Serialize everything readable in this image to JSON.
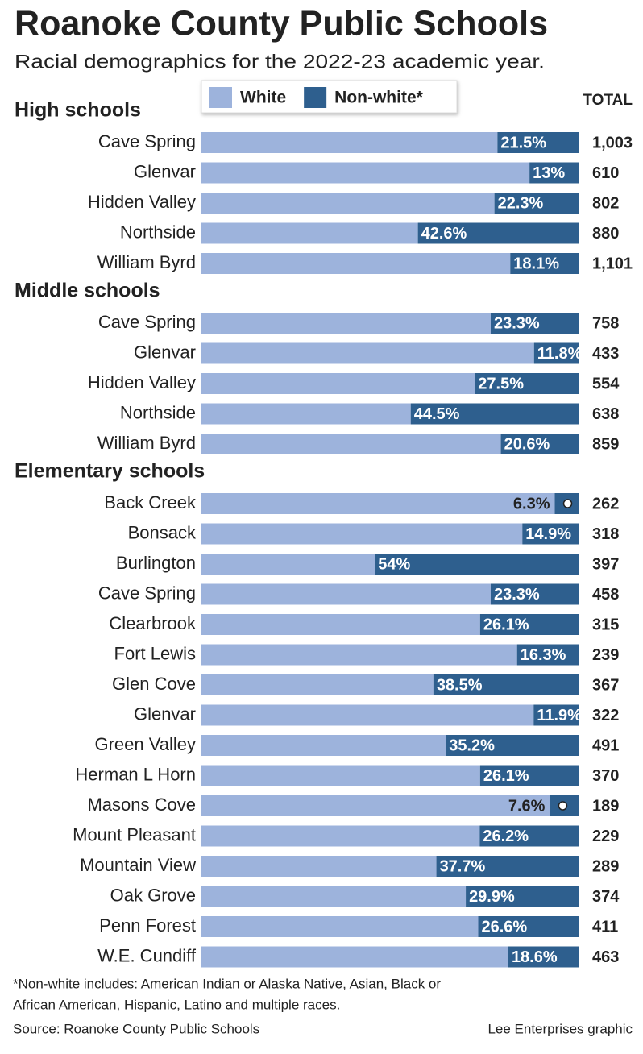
{
  "chart_data": {
    "type": "stacked-bar",
    "title": "Roanoke County Public Schools",
    "subtitle": "Racial demographics for the 2022-23 academic year.",
    "series": [
      {
        "name": "White",
        "color": "#9db3dc"
      },
      {
        "name": "Non-white*",
        "color": "#2e5f8e"
      }
    ],
    "total_header": "TOTAL",
    "xlim": [
      0,
      100
    ],
    "groups": [
      {
        "name": "High schools",
        "categories": [
          "Cave Spring",
          "Glenvar",
          "Hidden Valley",
          "Northside",
          "William Byrd"
        ],
        "values": [
          [
            78.5,
            87,
            77.7,
            57.4,
            81.9
          ],
          [
            21.5,
            13,
            22.3,
            42.6,
            18.1
          ]
        ],
        "value_labels": [
          "21.5%",
          "13%",
          "22.3%",
          "42.6%",
          "18.1%"
        ],
        "totals": [
          1003,
          610,
          802,
          880,
          1101
        ],
        "total_labels": [
          "1,003",
          "610",
          "802",
          "880",
          "1,101"
        ]
      },
      {
        "name": "Middle schools",
        "categories": [
          "Cave Spring",
          "Glenvar",
          "Hidden Valley",
          "Northside",
          "William Byrd"
        ],
        "values": [
          [
            76.7,
            88.2,
            72.5,
            55.5,
            79.4
          ],
          [
            23.3,
            11.8,
            27.5,
            44.5,
            20.6
          ]
        ],
        "value_labels": [
          "23.3%",
          "11.8%",
          "27.5%",
          "44.5%",
          "20.6%"
        ],
        "totals": [
          758,
          433,
          554,
          638,
          859
        ],
        "total_labels": [
          "758",
          "433",
          "554",
          "638",
          "859"
        ]
      },
      {
        "name": "Elementary schools",
        "categories": [
          "Back Creek",
          "Bonsack",
          "Burlington",
          "Cave Spring",
          "Clearbrook",
          "Fort Lewis",
          "Glen Cove",
          "Glenvar",
          "Green Valley",
          "Herman L Horn",
          "Masons Cove",
          "Mount Pleasant",
          "Mountain View",
          "Oak Grove",
          "Penn Forest",
          "W.E. Cundiff"
        ],
        "values": [
          [
            93.7,
            85.1,
            46,
            76.7,
            73.9,
            83.7,
            61.5,
            88.1,
            64.8,
            73.9,
            92.4,
            73.8,
            62.3,
            70.1,
            73.4,
            81.4
          ],
          [
            6.3,
            14.9,
            54,
            23.3,
            26.1,
            16.3,
            38.5,
            11.9,
            35.2,
            26.1,
            7.6,
            26.2,
            37.7,
            29.9,
            26.6,
            18.6
          ]
        ],
        "value_labels": [
          "6.3%",
          "14.9%",
          "54%",
          "23.3%",
          "26.1%",
          "16.3%",
          "38.5%",
          "11.9%",
          "35.2%",
          "26.1%",
          "7.6%",
          "26.2%",
          "37.7%",
          "29.9%",
          "26.6%",
          "18.6%"
        ],
        "totals": [
          262,
          318,
          397,
          458,
          315,
          239,
          367,
          322,
          491,
          370,
          189,
          229,
          289,
          374,
          411,
          463
        ],
        "total_labels": [
          "262",
          "318",
          "397",
          "458",
          "315",
          "239",
          "367",
          "322",
          "491",
          "370",
          "189",
          "229",
          "289",
          "374",
          "411",
          "463"
        ]
      }
    ],
    "footnote": [
      "*Non-white includes: American Indian or Alaska Native, Asian, Black or",
      "African American, Hispanic, Latino and multiple races."
    ],
    "source": "Source: Roanoke County Public Schools",
    "credit": "Lee Enterprises graphic"
  }
}
